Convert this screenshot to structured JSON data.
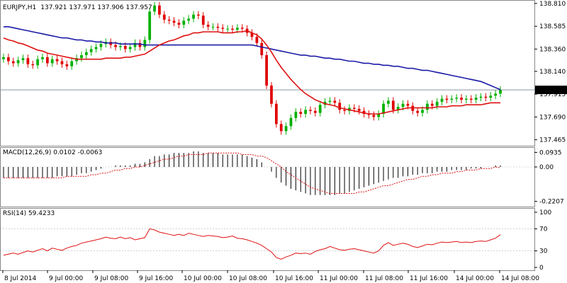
{
  "window": {
    "symbol": "EURJPY,H1",
    "ohlc": "137.921 137.971 137.906 137.957",
    "price_tag": "137.957"
  },
  "colors": {
    "bull": "#00b000",
    "bear": "#e00000",
    "ma_slow": "#1a1aa8",
    "ma_fast": "#e01010",
    "macd_hist": "#000000",
    "macd_signal": "#e01010",
    "rsi_line": "#e01010"
  },
  "chart_data": [
    {
      "type": "candlestick",
      "title": "EURJPY,H1  137.921 137.971 137.906 137.957",
      "y_ticks": [
        "138.810",
        "138.585",
        "138.360",
        "138.140",
        "137.915",
        "137.690",
        "137.465"
      ],
      "ylim": [
        137.42,
        138.83
      ],
      "x_ticks": [
        "8 Jul 2014",
        "9 Jul 00:00",
        "9 Jul 08:00",
        "9 Jul 16:00",
        "10 Jul 00:00",
        "10 Jul 08:00",
        "10 Jul 16:00",
        "11 Jul 00:00",
        "11 Jul 08:00",
        "11 Jul 16:00",
        "14 Jul 00:00",
        "14 Jul 08:00"
      ],
      "current_price": 137.957,
      "candles_close": [
        138.28,
        138.24,
        138.22,
        138.25,
        138.27,
        138.21,
        138.2,
        138.26,
        138.28,
        138.22,
        138.26,
        138.24,
        138.21,
        138.19,
        138.24,
        138.27,
        138.3,
        138.33,
        138.36,
        138.38,
        138.41,
        138.43,
        138.4,
        138.38,
        138.39,
        138.36,
        138.38,
        138.42,
        138.38,
        138.45,
        138.73,
        138.79,
        138.7,
        138.65,
        138.64,
        138.62,
        138.6,
        138.64,
        138.66,
        138.7,
        138.69,
        138.6,
        138.58,
        138.58,
        138.57,
        138.56,
        138.56,
        138.55,
        138.57,
        138.56,
        138.52,
        138.48,
        138.42,
        138.3,
        138.0,
        137.82,
        137.62,
        137.55,
        137.6,
        137.68,
        137.74,
        137.72,
        137.76,
        137.75,
        137.73,
        137.81,
        137.84,
        137.85,
        137.83,
        137.76,
        137.75,
        137.78,
        137.77,
        137.75,
        137.72,
        137.71,
        137.69,
        137.72,
        137.82,
        137.85,
        137.76,
        137.79,
        137.82,
        137.8,
        137.75,
        137.73,
        137.76,
        137.82,
        137.8,
        137.84,
        137.87,
        137.86,
        137.87,
        137.88,
        137.86,
        137.87,
        137.86,
        137.88,
        137.89,
        137.88,
        137.9,
        137.92,
        137.957
      ],
      "series": [
        {
          "name": "",
          "values": [
            138.58,
            138.58,
            138.57,
            138.56,
            138.55,
            138.54,
            138.53,
            138.52,
            138.51,
            138.5,
            138.49,
            138.48,
            138.47,
            138.47,
            138.46,
            138.45,
            138.45,
            138.44,
            138.44,
            138.43,
            138.43,
            138.42,
            138.42,
            138.42,
            138.41,
            138.41,
            138.41,
            138.41,
            138.41,
            138.4,
            138.4,
            138.4,
            138.4,
            138.4,
            138.4,
            138.4,
            138.4,
            138.4,
            138.4,
            138.4,
            138.4,
            138.4,
            138.4,
            138.4,
            138.4,
            138.4,
            138.4,
            138.4,
            138.4,
            138.4,
            138.4,
            138.4,
            138.39,
            138.38,
            138.37,
            138.36,
            138.35,
            138.34,
            138.33,
            138.32,
            138.31,
            138.3,
            138.3,
            138.29,
            138.29,
            138.28,
            138.27,
            138.27,
            138.26,
            138.26,
            138.25,
            138.24,
            138.24,
            138.23,
            138.22,
            138.22,
            138.21,
            138.21,
            138.2,
            138.2,
            138.19,
            138.19,
            138.18,
            138.17,
            138.17,
            138.16,
            138.15,
            138.15,
            138.14,
            138.13,
            138.12,
            138.11,
            138.1,
            138.09,
            138.08,
            138.07,
            138.06,
            138.05,
            138.04,
            138.02,
            138.0,
            137.98,
            137.96
          ]
        },
        {
          "name": "",
          "values": [
            138.47,
            138.45,
            138.44,
            138.42,
            138.41,
            138.39,
            138.37,
            138.35,
            138.34,
            138.32,
            138.31,
            138.3,
            138.29,
            138.28,
            138.27,
            138.26,
            138.26,
            138.26,
            138.26,
            138.26,
            138.26,
            138.27,
            138.27,
            138.27,
            138.27,
            138.28,
            138.28,
            138.29,
            138.3,
            138.31,
            138.34,
            138.37,
            138.4,
            138.42,
            138.44,
            138.45,
            138.47,
            138.49,
            138.5,
            138.52,
            138.52,
            138.53,
            138.53,
            138.53,
            138.53,
            138.52,
            138.52,
            138.52,
            138.53,
            138.53,
            138.54,
            138.52,
            138.5,
            138.46,
            138.4,
            138.33,
            138.25,
            138.18,
            138.12,
            138.06,
            138.01,
            137.96,
            137.92,
            137.89,
            137.86,
            137.84,
            137.82,
            137.81,
            137.8,
            137.78,
            137.77,
            137.76,
            137.75,
            137.74,
            137.73,
            137.72,
            137.72,
            137.72,
            137.73,
            137.74,
            137.75,
            137.76,
            137.77,
            137.78,
            137.78,
            137.78,
            137.78,
            137.78,
            137.78,
            137.79,
            137.79,
            137.79,
            137.8,
            137.8,
            137.8,
            137.81,
            137.81,
            137.81,
            137.81,
            137.82,
            137.83,
            137.83,
            137.83
          ]
        }
      ]
    },
    {
      "type": "bar",
      "title": "MACD(12,26,9) 0.0102 -0.0063",
      "y_ticks": [
        "0.0935",
        "0.00",
        "-0.2207"
      ],
      "ylim": [
        -0.245,
        0.118
      ],
      "values": [
        -0.07,
        -0.07,
        -0.07,
        -0.07,
        -0.07,
        -0.07,
        -0.07,
        -0.07,
        -0.07,
        -0.07,
        -0.07,
        -0.06,
        -0.06,
        -0.06,
        -0.06,
        -0.05,
        -0.04,
        -0.04,
        -0.03,
        -0.02,
        -0.01,
        -0.0,
        0.0,
        0.01,
        0.01,
        0.01,
        0.01,
        0.02,
        0.02,
        0.03,
        0.05,
        0.07,
        0.07,
        0.08,
        0.08,
        0.09,
        0.09,
        0.09,
        0.09,
        0.1,
        0.1,
        0.09,
        0.09,
        0.09,
        0.09,
        0.08,
        0.08,
        0.08,
        0.08,
        0.08,
        0.07,
        0.06,
        0.05,
        0.03,
        0.0,
        -0.03,
        -0.07,
        -0.1,
        -0.12,
        -0.14,
        -0.15,
        -0.16,
        -0.17,
        -0.18,
        -0.18,
        -0.18,
        -0.18,
        -0.18,
        -0.18,
        -0.17,
        -0.17,
        -0.16,
        -0.15,
        -0.14,
        -0.13,
        -0.12,
        -0.11,
        -0.1,
        -0.09,
        -0.08,
        -0.07,
        -0.07,
        -0.06,
        -0.06,
        -0.05,
        -0.05,
        -0.04,
        -0.04,
        -0.04,
        -0.03,
        -0.03,
        -0.03,
        -0.02,
        -0.02,
        -0.02,
        -0.02,
        -0.01,
        -0.01,
        -0.01,
        0.0,
        0.0,
        0.01,
        0.01
      ],
      "signal": [
        -0.07,
        -0.07,
        -0.07,
        -0.07,
        -0.07,
        -0.07,
        -0.07,
        -0.07,
        -0.07,
        -0.07,
        -0.07,
        -0.07,
        -0.07,
        -0.06,
        -0.06,
        -0.06,
        -0.06,
        -0.06,
        -0.05,
        -0.05,
        -0.04,
        -0.04,
        -0.03,
        -0.02,
        -0.02,
        -0.01,
        -0.01,
        -0.0,
        0.0,
        0.01,
        0.02,
        0.03,
        0.04,
        0.05,
        0.05,
        0.06,
        0.07,
        0.07,
        0.08,
        0.08,
        0.08,
        0.08,
        0.09,
        0.09,
        0.09,
        0.09,
        0.09,
        0.09,
        0.09,
        0.08,
        0.08,
        0.08,
        0.07,
        0.07,
        0.06,
        0.04,
        0.02,
        0.0,
        -0.03,
        -0.05,
        -0.07,
        -0.09,
        -0.11,
        -0.13,
        -0.14,
        -0.15,
        -0.16,
        -0.17,
        -0.17,
        -0.17,
        -0.17,
        -0.17,
        -0.17,
        -0.16,
        -0.16,
        -0.15,
        -0.14,
        -0.13,
        -0.12,
        -0.12,
        -0.11,
        -0.1,
        -0.09,
        -0.08,
        -0.08,
        -0.07,
        -0.06,
        -0.06,
        -0.05,
        -0.05,
        -0.04,
        -0.04,
        -0.04,
        -0.03,
        -0.03,
        -0.02,
        -0.02,
        -0.02,
        -0.01,
        -0.01,
        -0.01,
        -0.0,
        -0.006
      ]
    },
    {
      "type": "line",
      "title": "RSI(14) 59.4233",
      "y_ticks": [
        "100",
        "70",
        "30",
        "0"
      ],
      "ylim": [
        0,
        100
      ],
      "levels": [
        70,
        30
      ],
      "values": [
        22,
        24,
        26,
        24,
        27,
        30,
        28,
        31,
        34,
        30,
        35,
        33,
        31,
        35,
        38,
        40,
        44,
        46,
        48,
        50,
        52,
        55,
        53,
        52,
        55,
        52,
        54,
        50,
        52,
        54,
        70,
        68,
        64,
        62,
        60,
        58,
        60,
        58,
        62,
        60,
        58,
        56,
        58,
        57,
        56,
        54,
        55,
        57,
        53,
        52,
        50,
        47,
        44,
        40,
        34,
        28,
        18,
        15,
        19,
        22,
        26,
        25,
        26,
        24,
        29,
        32,
        34,
        38,
        35,
        32,
        31,
        33,
        34,
        32,
        30,
        28,
        26,
        30,
        40,
        45,
        40,
        42,
        44,
        42,
        38,
        36,
        39,
        42,
        41,
        44,
        46,
        45,
        46,
        47,
        45,
        46,
        45,
        47,
        48,
        47,
        50,
        53,
        59.4
      ]
    }
  ]
}
